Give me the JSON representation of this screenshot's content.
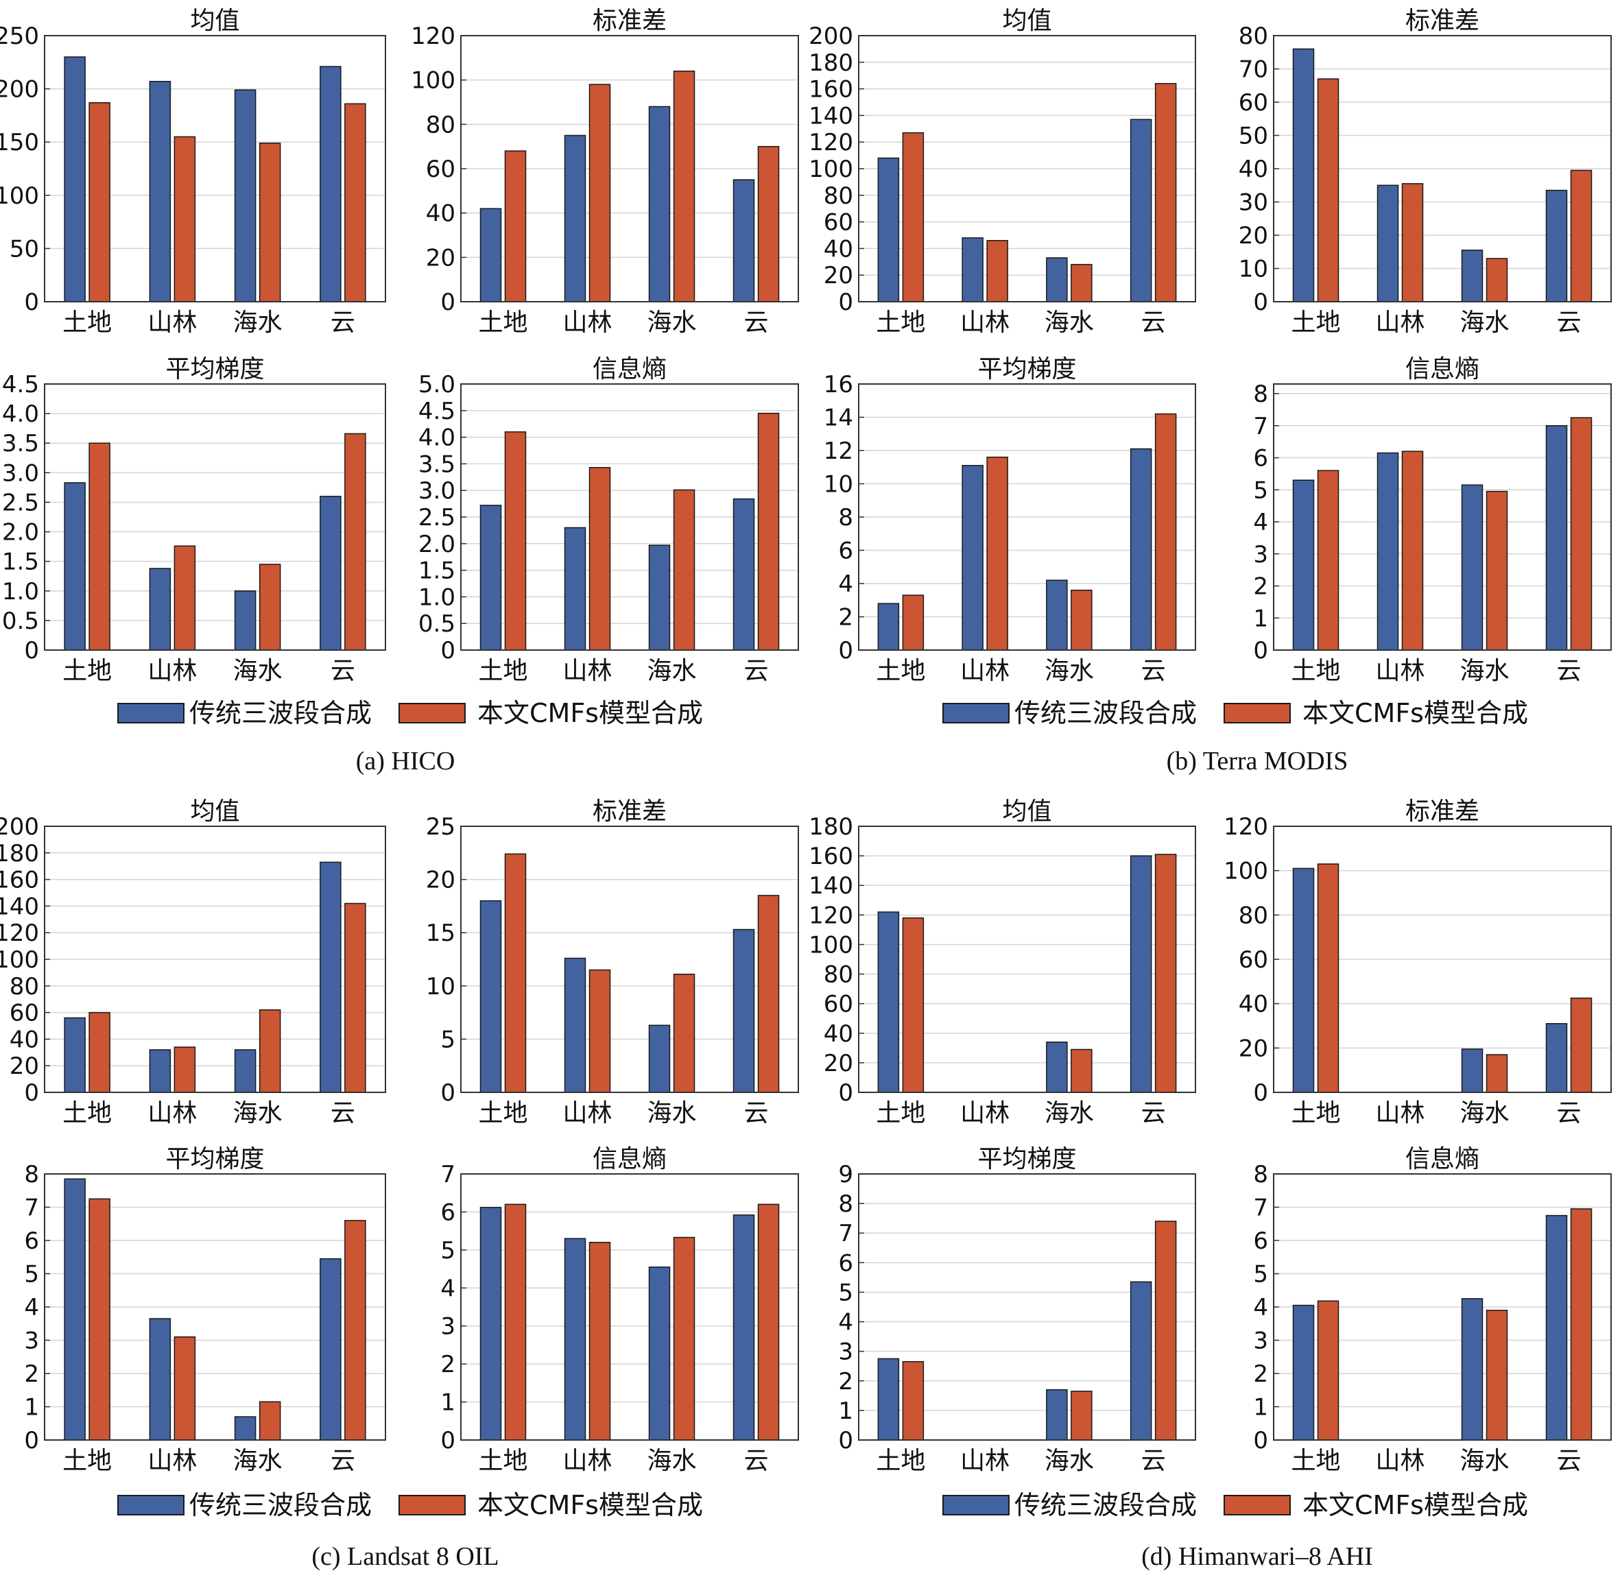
{
  "colors": {
    "traditional": "#4263a0",
    "cmf": "#cc5533",
    "grid": "#d4d4d4",
    "axis": "#333333"
  },
  "legend": {
    "traditional": "传统三波段合成",
    "cmf": "本文CMFs模型合成"
  },
  "panels": [
    {
      "caption": "(a) HICO"
    },
    {
      "caption": "(b) Terra MODIS"
    },
    {
      "caption": "(c) Landsat 8 OIL"
    },
    {
      "caption": "(d) Himanwari–8 AHI"
    }
  ],
  "chart_data": [
    {
      "type": "bar",
      "panel": 0,
      "title": "均值",
      "categories": [
        "土地",
        "山林",
        "海水",
        "云"
      ],
      "yticks": [
        "0",
        "50",
        "100",
        "150",
        "200",
        "250"
      ],
      "ylim": [
        0,
        250
      ],
      "series": [
        {
          "name": "传统三波段合成",
          "values": [
            230,
            207,
            199,
            221
          ]
        },
        {
          "name": "本文CMFs模型合成",
          "values": [
            187,
            155,
            149,
            186
          ]
        }
      ]
    },
    {
      "type": "bar",
      "panel": 0,
      "title": "标准差",
      "categories": [
        "土地",
        "山林",
        "海水",
        "云"
      ],
      "yticks": [
        "0",
        "20",
        "40",
        "60",
        "80",
        "100",
        "120"
      ],
      "ylim": [
        0,
        120
      ],
      "series": [
        {
          "name": "传统三波段合成",
          "values": [
            42,
            75,
            88,
            55
          ]
        },
        {
          "name": "本文CMFs模型合成",
          "values": [
            68,
            98,
            104,
            70
          ]
        }
      ]
    },
    {
      "type": "bar",
      "panel": 1,
      "title": "均值",
      "categories": [
        "土地",
        "山林",
        "海水",
        "云"
      ],
      "yticks": [
        "0",
        "20",
        "40",
        "60",
        "80",
        "100",
        "120",
        "140",
        "160",
        "180",
        "200"
      ],
      "ylim": [
        0,
        200
      ],
      "series": [
        {
          "name": "传统三波段合成",
          "values": [
            108,
            48,
            33,
            137
          ]
        },
        {
          "name": "本文CMFs模型合成",
          "values": [
            127,
            46,
            28,
            164
          ]
        }
      ]
    },
    {
      "type": "bar",
      "panel": 1,
      "title": "标准差",
      "categories": [
        "土地",
        "山林",
        "海水",
        "云"
      ],
      "yticks": [
        "0",
        "10",
        "20",
        "30",
        "40",
        "50",
        "60",
        "70",
        "80"
      ],
      "ylim": [
        0,
        80
      ],
      "series": [
        {
          "name": "传统三波段合成",
          "values": [
            76,
            35,
            15.5,
            33.5
          ]
        },
        {
          "name": "本文CMFs模型合成",
          "values": [
            67,
            35.5,
            13,
            39.5
          ]
        }
      ]
    },
    {
      "type": "bar",
      "panel": 0,
      "title": "平均梯度",
      "categories": [
        "土地",
        "山林",
        "海水",
        "云"
      ],
      "yticks": [
        "0",
        "0.5",
        "1.0",
        "1.5",
        "2.0",
        "2.5",
        "3.0",
        "3.5",
        "4.0",
        "4.5"
      ],
      "ylim": [
        0,
        4.5
      ],
      "series": [
        {
          "name": "传统三波段合成",
          "values": [
            2.83,
            1.38,
            1.0,
            2.6
          ]
        },
        {
          "name": "本文CMFs模型合成",
          "values": [
            3.5,
            1.76,
            1.45,
            3.66
          ]
        }
      ]
    },
    {
      "type": "bar",
      "panel": 0,
      "title": "信息熵",
      "categories": [
        "土地",
        "山林",
        "海水",
        "云"
      ],
      "yticks": [
        "0",
        "0.5",
        "1.0",
        "1.5",
        "2.0",
        "2.5",
        "3.0",
        "3.5",
        "4.0",
        "4.5",
        "5.0"
      ],
      "ylim": [
        0,
        5
      ],
      "series": [
        {
          "name": "传统三波段合成",
          "values": [
            2.72,
            2.3,
            1.97,
            2.84
          ]
        },
        {
          "name": "本文CMFs模型合成",
          "values": [
            4.1,
            3.43,
            3.01,
            4.45
          ]
        }
      ]
    },
    {
      "type": "bar",
      "panel": 1,
      "title": "平均梯度",
      "categories": [
        "土地",
        "山林",
        "海水",
        "云"
      ],
      "yticks": [
        "0",
        "2",
        "4",
        "6",
        "8",
        "10",
        "12",
        "14",
        "16"
      ],
      "ylim": [
        0,
        16
      ],
      "series": [
        {
          "name": "传统三波段合成",
          "values": [
            2.8,
            11.1,
            4.2,
            12.1
          ]
        },
        {
          "name": "本文CMFs模型合成",
          "values": [
            3.3,
            11.6,
            3.6,
            14.2
          ]
        }
      ]
    },
    {
      "type": "bar",
      "panel": 1,
      "title": "信息熵",
      "categories": [
        "土地",
        "山林",
        "海水",
        "云"
      ],
      "yticks": [
        "0",
        "1",
        "2",
        "3",
        "4",
        "5",
        "6",
        "7",
        "8"
      ],
      "ylim": [
        0,
        8.3
      ],
      "series": [
        {
          "name": "传统三波段合成",
          "values": [
            5.3,
            6.15,
            5.15,
            7.0
          ]
        },
        {
          "name": "本文CMFs模型合成",
          "values": [
            5.6,
            6.2,
            4.95,
            7.25
          ]
        }
      ]
    },
    {
      "type": "bar",
      "panel": 2,
      "title": "均值",
      "categories": [
        "土地",
        "山林",
        "海水",
        "云"
      ],
      "yticks": [
        "0",
        "20",
        "40",
        "60",
        "80",
        "100",
        "120",
        "140",
        "160",
        "180",
        "200"
      ],
      "ylim": [
        0,
        200
      ],
      "series": [
        {
          "name": "传统三波段合成",
          "values": [
            56,
            32,
            32,
            173
          ]
        },
        {
          "name": "本文CMFs模型合成",
          "values": [
            60,
            34,
            62,
            142
          ]
        }
      ]
    },
    {
      "type": "bar",
      "panel": 2,
      "title": "标准差",
      "categories": [
        "土地",
        "山林",
        "海水",
        "云"
      ],
      "yticks": [
        "0",
        "5",
        "10",
        "15",
        "20",
        "25"
      ],
      "ylim": [
        0,
        25
      ],
      "series": [
        {
          "name": "传统三波段合成",
          "values": [
            18,
            12.6,
            6.3,
            15.3
          ]
        },
        {
          "name": "本文CMFs模型合成",
          "values": [
            22.4,
            11.5,
            11.1,
            18.5
          ]
        }
      ]
    },
    {
      "type": "bar",
      "panel": 3,
      "title": "均值",
      "categories": [
        "土地",
        "山林",
        "海水",
        "云"
      ],
      "yticks": [
        "0",
        "20",
        "40",
        "60",
        "80",
        "100",
        "120",
        "140",
        "160",
        "180"
      ],
      "ylim": [
        0,
        180
      ],
      "series": [
        {
          "name": "传统三波段合成",
          "values": [
            122,
            0,
            34,
            160
          ]
        },
        {
          "name": "本文CMFs模型合成",
          "values": [
            118,
            0,
            29,
            161
          ]
        }
      ]
    },
    {
      "type": "bar",
      "panel": 3,
      "title": "标准差",
      "categories": [
        "土地",
        "山林",
        "海水",
        "云"
      ],
      "yticks": [
        "0",
        "20",
        "40",
        "60",
        "80",
        "100",
        "120"
      ],
      "ylim": [
        0,
        120
      ],
      "series": [
        {
          "name": "传统三波段合成",
          "values": [
            101,
            0,
            19.5,
            31
          ]
        },
        {
          "name": "本文CMFs模型合成",
          "values": [
            103,
            0,
            17,
            42.5
          ]
        }
      ]
    },
    {
      "type": "bar",
      "panel": 2,
      "title": "平均梯度",
      "categories": [
        "土地",
        "山林",
        "海水",
        "云"
      ],
      "yticks": [
        "0",
        "1",
        "2",
        "3",
        "4",
        "5",
        "6",
        "7",
        "8"
      ],
      "ylim": [
        0,
        8
      ],
      "series": [
        {
          "name": "传统三波段合成",
          "values": [
            7.85,
            3.65,
            0.7,
            5.45
          ]
        },
        {
          "name": "本文CMFs模型合成",
          "values": [
            7.25,
            3.1,
            1.15,
            6.6
          ]
        }
      ]
    },
    {
      "type": "bar",
      "panel": 2,
      "title": "信息熵",
      "categories": [
        "土地",
        "山林",
        "海水",
        "云"
      ],
      "yticks": [
        "0",
        "1",
        "2",
        "3",
        "4",
        "5",
        "6",
        "7"
      ],
      "ylim": [
        0,
        7
      ],
      "series": [
        {
          "name": "传统三波段合成",
          "values": [
            6.12,
            5.3,
            4.55,
            5.92
          ]
        },
        {
          "name": "本文CMFs模型合成",
          "values": [
            6.2,
            5.2,
            5.33,
            6.2
          ]
        }
      ]
    },
    {
      "type": "bar",
      "panel": 3,
      "title": "平均梯度",
      "categories": [
        "土地",
        "山林",
        "海水",
        "云"
      ],
      "yticks": [
        "0",
        "1",
        "2",
        "3",
        "4",
        "5",
        "6",
        "7",
        "8",
        "9"
      ],
      "ylim": [
        0,
        9
      ],
      "series": [
        {
          "name": "传统三波段合成",
          "values": [
            2.75,
            0,
            1.7,
            5.35
          ]
        },
        {
          "name": "本文CMFs模型合成",
          "values": [
            2.65,
            0,
            1.65,
            7.4
          ]
        }
      ]
    },
    {
      "type": "bar",
      "panel": 3,
      "title": "信息熵",
      "categories": [
        "土地",
        "山林",
        "海水",
        "云"
      ],
      "yticks": [
        "0",
        "1",
        "2",
        "3",
        "4",
        "5",
        "6",
        "7",
        "8"
      ],
      "ylim": [
        0,
        8
      ],
      "series": [
        {
          "name": "传统三波段合成",
          "values": [
            4.05,
            0,
            4.25,
            6.75
          ]
        },
        {
          "name": "本文CMFs模型合成",
          "values": [
            4.18,
            0,
            3.9,
            6.95
          ]
        }
      ]
    }
  ]
}
